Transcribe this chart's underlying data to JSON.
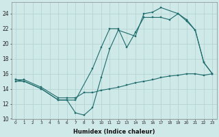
{
  "xlabel": "Humidex (Indice chaleur)",
  "xlim": [
    -0.5,
    23.5
  ],
  "ylim": [
    10,
    25.5
  ],
  "yticks": [
    10,
    12,
    14,
    16,
    18,
    20,
    22,
    24
  ],
  "xticks": [
    0,
    1,
    2,
    3,
    4,
    5,
    6,
    7,
    8,
    9,
    10,
    11,
    12,
    13,
    14,
    15,
    16,
    17,
    18,
    19,
    20,
    21,
    22,
    23
  ],
  "bg_color": "#cfe8e8",
  "grid_color": "#b0d0d0",
  "line_color": "#1e6b6b",
  "series1_x": [
    0,
    1,
    3,
    5,
    6,
    7,
    8,
    9,
    10,
    11,
    12,
    14,
    15,
    16,
    17,
    19,
    20,
    21,
    22,
    23
  ],
  "series1_y": [
    15.0,
    15.0,
    14.0,
    12.5,
    12.5,
    10.8,
    10.5,
    11.5,
    15.5,
    19.3,
    21.8,
    21.0,
    24.0,
    24.2,
    24.8,
    24.0,
    23.0,
    21.8,
    17.5,
    16.0
  ],
  "series2_x": [
    0,
    1,
    3,
    5,
    6,
    7,
    9,
    10,
    11,
    12,
    13,
    14,
    15,
    16,
    17,
    18,
    19,
    20,
    21,
    22,
    23
  ],
  "series2_y": [
    15.2,
    15.0,
    14.0,
    12.5,
    12.5,
    12.5,
    16.7,
    19.5,
    22.0,
    22.0,
    19.5,
    21.5,
    23.5,
    23.5,
    23.5,
    23.2,
    24.0,
    23.2,
    21.8,
    17.5,
    16.0
  ],
  "series3_x": [
    0,
    1,
    3,
    5,
    6,
    7,
    8,
    9,
    10,
    11,
    12,
    13,
    14,
    15,
    16,
    17,
    18,
    19,
    20,
    21,
    22,
    23
  ],
  "series3_y": [
    15.2,
    15.2,
    14.2,
    12.8,
    12.8,
    12.8,
    13.5,
    13.5,
    13.8,
    14.0,
    14.2,
    14.5,
    14.8,
    15.0,
    15.2,
    15.5,
    15.7,
    15.8,
    16.0,
    16.0,
    15.8,
    16.0
  ]
}
